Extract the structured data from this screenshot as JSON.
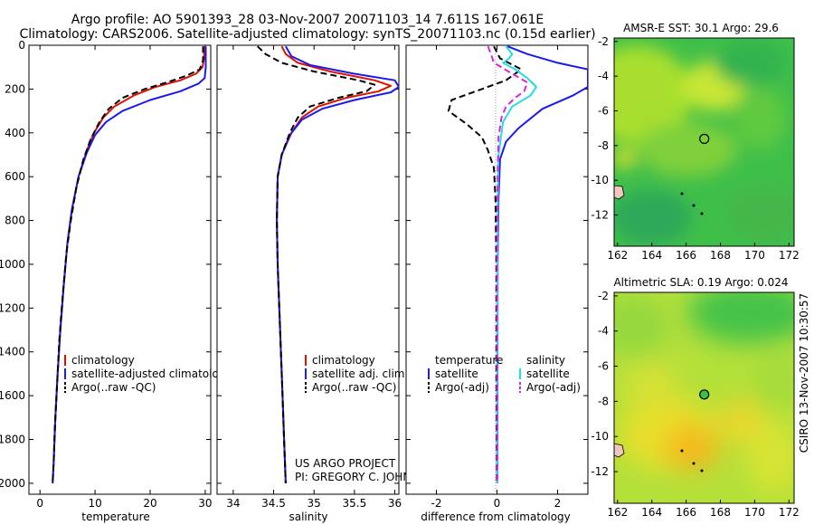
{
  "header": {
    "line1": "Argo profile: AO 5901393_28 03-Nov-2007 20071103_14 7.611S 167.061E",
    "line2": "Climatology: CARS2006. Satellite-adjusted climatology: synTS_20071103.nc (0.15d earlier)"
  },
  "credit": {
    "project": "US ARGO PROJECT",
    "pi": "PI: GREGORY C. JOHNSON",
    "stamp": "CSIRO 13-Nov-2007 10:30:57"
  },
  "colors": {
    "climatology": "#dd1100",
    "satellite": "#1a1aee",
    "argo": "#000000",
    "satellite_salinity": "#22dde8",
    "argo_salinity_adj": "#dd22dd"
  },
  "chart_data": [
    {
      "type": "line",
      "id": "temperature",
      "xlabel": "temperature",
      "ylabel": "",
      "xlim": [
        -2,
        31
      ],
      "ylim": [
        2050,
        0
      ],
      "xticks": [
        0,
        10,
        20,
        30
      ],
      "yticks": [
        0,
        200,
        400,
        600,
        800,
        1000,
        1200,
        1400,
        1600,
        1800,
        2000
      ],
      "legend": [
        "climatology",
        "satellite-adjusted climatology",
        "Argo(..raw -QC)"
      ],
      "series": [
        {
          "name": "climatology",
          "color": "#dd1100",
          "dash": false,
          "points": [
            [
              29.8,
              5
            ],
            [
              29.8,
              60
            ],
            [
              29.5,
              100
            ],
            [
              28.3,
              130
            ],
            [
              25.5,
              160
            ],
            [
              21,
              190
            ],
            [
              17,
              230
            ],
            [
              13.5,
              280
            ],
            [
              11.5,
              330
            ],
            [
              9.8,
              400
            ],
            [
              8.5,
              480
            ],
            [
              7,
              600
            ],
            [
              5.8,
              750
            ],
            [
              5,
              900
            ],
            [
              4.3,
              1100
            ],
            [
              3.7,
              1300
            ],
            [
              3.2,
              1500
            ],
            [
              2.8,
              1700
            ],
            [
              2.5,
              1900
            ],
            [
              2.3,
              2000
            ]
          ]
        },
        {
          "name": "satellite-adjusted climatology",
          "color": "#1a1aee",
          "dash": false,
          "points": [
            [
              30.1,
              5
            ],
            [
              30.1,
              100
            ],
            [
              29.9,
              150
            ],
            [
              28.8,
              175
            ],
            [
              25.5,
              210
            ],
            [
              20,
              250
            ],
            [
              15,
              300
            ],
            [
              12,
              350
            ],
            [
              10,
              410
            ],
            [
              8.5,
              490
            ],
            [
              7,
              600
            ],
            [
              5.8,
              750
            ],
            [
              5,
              900
            ],
            [
              4.3,
              1100
            ],
            [
              3.7,
              1300
            ],
            [
              3.2,
              1500
            ],
            [
              2.8,
              1700
            ],
            [
              2.5,
              1900
            ],
            [
              2.3,
              2000
            ]
          ]
        },
        {
          "name": "Argo(..raw -QC)",
          "color": "#000000",
          "dash": true,
          "points": [
            [
              29.6,
              5
            ],
            [
              29.6,
              70
            ],
            [
              29,
              110
            ],
            [
              26.5,
              140
            ],
            [
              23,
              170
            ],
            [
              19,
              200
            ],
            [
              15,
              240
            ],
            [
              12.5,
              290
            ],
            [
              10.8,
              350
            ],
            [
              9.2,
              430
            ],
            [
              7.9,
              520
            ],
            [
              6.6,
              650
            ],
            [
              5.6,
              800
            ],
            [
              4.8,
              950
            ],
            [
              4.1,
              1150
            ],
            [
              3.5,
              1350
            ],
            [
              3.1,
              1550
            ],
            [
              2.7,
              1750
            ],
            [
              2.5,
              1900
            ],
            [
              2.3,
              2000
            ]
          ]
        }
      ]
    },
    {
      "type": "line",
      "id": "salinity",
      "xlabel": "salinity",
      "ylabel": "",
      "xlim": [
        33.8,
        36.05
      ],
      "ylim": [
        2050,
        0
      ],
      "xticks": [
        34,
        34.5,
        35,
        35.5,
        36
      ],
      "xticklabels": [
        "34",
        "34.5",
        "35",
        "35.5",
        "36"
      ],
      "legend": [
        "climatology",
        "satellite adj. clim.",
        "Argo(..raw -QC)"
      ],
      "series": [
        {
          "name": "climatology",
          "color": "#dd1100",
          "dash": false,
          "points": [
            [
              34.6,
              5
            ],
            [
              34.65,
              40
            ],
            [
              34.8,
              80
            ],
            [
              35.2,
              120
            ],
            [
              35.75,
              160
            ],
            [
              35.95,
              185
            ],
            [
              35.8,
              210
            ],
            [
              35.4,
              240
            ],
            [
              35.05,
              280
            ],
            [
              34.85,
              330
            ],
            [
              34.72,
              400
            ],
            [
              34.6,
              500
            ],
            [
              34.55,
              600
            ],
            [
              34.54,
              800
            ],
            [
              34.55,
              1000
            ],
            [
              34.57,
              1200
            ],
            [
              34.59,
              1400
            ],
            [
              34.61,
              1600
            ],
            [
              34.63,
              1800
            ],
            [
              34.65,
              2000
            ]
          ]
        },
        {
          "name": "satellite adj. clim.",
          "color": "#1a1aee",
          "dash": false,
          "points": [
            [
              34.65,
              5
            ],
            [
              34.72,
              50
            ],
            [
              34.95,
              90
            ],
            [
              35.5,
              130
            ],
            [
              36.0,
              160
            ],
            [
              36.05,
              190
            ],
            [
              35.95,
              215
            ],
            [
              35.5,
              250
            ],
            [
              35.1,
              290
            ],
            [
              34.85,
              340
            ],
            [
              34.7,
              410
            ],
            [
              34.6,
              500
            ],
            [
              34.55,
              600
            ],
            [
              34.54,
              800
            ],
            [
              34.55,
              1000
            ],
            [
              34.57,
              1200
            ],
            [
              34.59,
              1400
            ],
            [
              34.61,
              1600
            ],
            [
              34.63,
              1800
            ],
            [
              34.65,
              2000
            ]
          ]
        },
        {
          "name": "Argo(..raw -QC)",
          "color": "#000000",
          "dash": true,
          "points": [
            [
              34.3,
              5
            ],
            [
              34.4,
              40
            ],
            [
              34.6,
              80
            ],
            [
              35.0,
              120
            ],
            [
              35.55,
              160
            ],
            [
              35.75,
              180
            ],
            [
              35.65,
              210
            ],
            [
              35.3,
              240
            ],
            [
              34.95,
              280
            ],
            [
              34.8,
              330
            ],
            [
              34.7,
              400
            ],
            [
              34.6,
              500
            ],
            [
              34.55,
              600
            ],
            [
              34.54,
              800
            ],
            [
              34.55,
              1000
            ],
            [
              34.57,
              1200
            ],
            [
              34.59,
              1400
            ],
            [
              34.61,
              1600
            ],
            [
              34.63,
              1800
            ],
            [
              34.65,
              2000
            ]
          ]
        }
      ]
    },
    {
      "type": "line",
      "id": "difference",
      "xlabel": "difference from climatology",
      "ylabel": "",
      "xlim": [
        -3,
        3
      ],
      "ylim": [
        2050,
        0
      ],
      "xticks": [
        -2,
        0,
        2
      ],
      "legend_groups": [
        {
          "heading": "temperature",
          "items": [
            "satellite",
            "Argo(-adj)"
          ]
        },
        {
          "heading": "salinity",
          "items": [
            "satellite",
            "Argo(-adj)"
          ]
        }
      ],
      "series": [
        {
          "name": "temperature satellite",
          "color": "#1a1aee",
          "dash": false,
          "points": [
            [
              0.35,
              5
            ],
            [
              1.0,
              40
            ],
            [
              2.0,
              80
            ],
            [
              3.0,
              110
            ],
            [
              3.0,
              190
            ],
            [
              2.5,
              230
            ],
            [
              1.5,
              290
            ],
            [
              0.7,
              380
            ],
            [
              0.3,
              440
            ],
            [
              0.1,
              520
            ],
            [
              0.05,
              700
            ],
            [
              0.02,
              1000
            ],
            [
              0.01,
              2000
            ]
          ]
        },
        {
          "name": "temperature Argo(-adj)",
          "color": "#000000",
          "dash": true,
          "points": [
            [
              -0.1,
              5
            ],
            [
              0.1,
              60
            ],
            [
              0.8,
              110
            ],
            [
              0.3,
              160
            ],
            [
              -0.5,
              200
            ],
            [
              -1.5,
              250
            ],
            [
              -1.6,
              300
            ],
            [
              -1.0,
              360
            ],
            [
              -0.5,
              420
            ],
            [
              -0.3,
              480
            ],
            [
              -0.1,
              560
            ],
            [
              -0.05,
              700
            ],
            [
              -0.02,
              1000
            ],
            [
              -0.02,
              1500
            ],
            [
              -0.01,
              2000
            ]
          ]
        },
        {
          "name": "salinity satellite",
          "color": "#22dde8",
          "dash": false,
          "points": [
            [
              0.3,
              5
            ],
            [
              0.5,
              40
            ],
            [
              0.4,
              60
            ],
            [
              0.2,
              80
            ],
            [
              0.6,
              110
            ],
            [
              1.0,
              150
            ],
            [
              1.3,
              190
            ],
            [
              1.1,
              230
            ],
            [
              0.5,
              280
            ],
            [
              0.2,
              350
            ],
            [
              0.05,
              500
            ],
            [
              0.02,
              800
            ],
            [
              0.0,
              2000
            ]
          ]
        },
        {
          "name": "salinity Argo(-adj)",
          "color": "#dd22dd",
          "dash": true,
          "points": [
            [
              -0.3,
              5
            ],
            [
              -0.2,
              40
            ],
            [
              -0.1,
              80
            ],
            [
              0.5,
              130
            ],
            [
              1.0,
              170
            ],
            [
              0.9,
              210
            ],
            [
              0.6,
              240
            ],
            [
              0.3,
              280
            ],
            [
              0.15,
              330
            ],
            [
              0.05,
              420
            ],
            [
              0.02,
              600
            ],
            [
              0.0,
              1000
            ],
            [
              0.0,
              2000
            ]
          ]
        }
      ]
    },
    {
      "type": "heatmap",
      "id": "sst-map",
      "title": "AMSR-E SST: 30.1  Argo: 29.6",
      "xlim": [
        161.8,
        172.3
      ],
      "ylim": [
        -13.8,
        -1.8
      ],
      "xticks": [
        162,
        164,
        166,
        168,
        170,
        172
      ],
      "yticks": [
        -12,
        -10,
        -8,
        -6,
        -4,
        -2
      ],
      "profile_location": [
        167.06,
        -7.61
      ]
    },
    {
      "type": "heatmap",
      "id": "sla-map",
      "title": "Altimetric SLA: 0.19  Argo: 0.024",
      "xlim": [
        161.8,
        172.3
      ],
      "ylim": [
        -13.8,
        -1.8
      ],
      "xticks": [
        162,
        164,
        166,
        168,
        170,
        172
      ],
      "yticks": [
        -12,
        -10,
        -8,
        -6,
        -4,
        -2
      ],
      "profile_location": [
        167.06,
        -7.61
      ]
    }
  ]
}
